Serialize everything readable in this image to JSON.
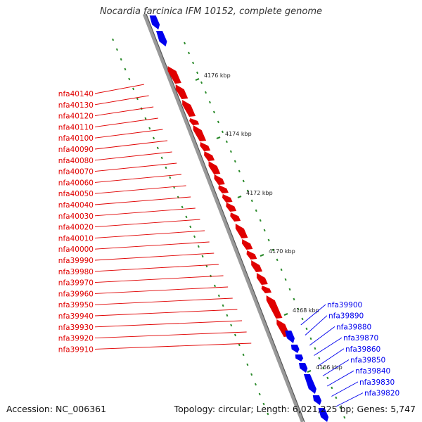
{
  "title": "Nocardia farcinica IFM 10152, complete genome",
  "footer": {
    "accession": "Accession: NC_006361",
    "summary": "Topology: circular; Length: 6,021,225 bp; Genes: 5,747"
  },
  "colors": {
    "reverse_strand": "#e00000",
    "forward_strand": "#0000ee",
    "backbone": "#777777",
    "scale_ticks": "#2a8a2a",
    "text_dark": "#222222"
  },
  "scale_labels": [
    "4176 kbp",
    "4174 kbp",
    "4172 kbp",
    "4170 kbp",
    "4168 kbp",
    "4166 kbp"
  ],
  "genes_reverse": [
    "nfa40140",
    "nfa40130",
    "nfa40120",
    "nfa40110",
    "nfa40100",
    "nfa40090",
    "nfa40080",
    "nfa40070",
    "nfa40060",
    "nfa40050",
    "nfa40040",
    "nfa40030",
    "nfa40020",
    "nfa40010",
    "nfa40000",
    "nfa39990",
    "nfa39980",
    "nfa39970",
    "nfa39960",
    "nfa39950",
    "nfa39940",
    "nfa39930",
    "nfa39920",
    "nfa39910"
  ],
  "genes_forward": [
    "nfa39900",
    "nfa39890",
    "nfa39880",
    "nfa39870",
    "nfa39860",
    "nfa39850",
    "nfa39840",
    "nfa39830",
    "nfa39820"
  ]
}
